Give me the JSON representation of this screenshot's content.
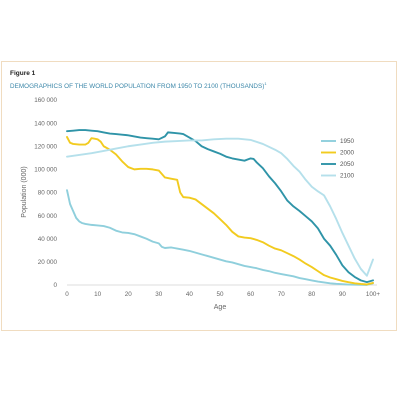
{
  "figure": {
    "label": "Figure 1",
    "title": "DEMOGRAPHICS OF THE WORLD POPULATION FROM 1950 TO 2100 (THOUSANDS)",
    "footnote_marker": "1"
  },
  "chart_data": {
    "type": "line",
    "xlabel": "Age",
    "ylabel": "Population (000)",
    "xlim": [
      0,
      100
    ],
    "ylim": [
      0,
      160000
    ],
    "x_ticks": [
      0,
      10,
      20,
      30,
      40,
      50,
      60,
      70,
      80,
      90,
      100
    ],
    "x_tick_labels": [
      "0",
      "10",
      "20",
      "30",
      "40",
      "50",
      "60",
      "70",
      "80",
      "90",
      "100+"
    ],
    "y_ticks": [
      0,
      20000,
      40000,
      60000,
      80000,
      100000,
      120000,
      140000,
      160000
    ],
    "y_tick_labels": [
      "0",
      "20 000",
      "40 000",
      "60 000",
      "80 000",
      "100 000",
      "120 000",
      "140 000",
      "160 000"
    ],
    "grid": false,
    "legend_position": "right",
    "series": [
      {
        "name": "1950",
        "color": "#8fcfdc",
        "points": [
          [
            0,
            82000
          ],
          [
            1,
            70000
          ],
          [
            2,
            64000
          ],
          [
            3,
            58000
          ],
          [
            4,
            55000
          ],
          [
            5,
            53500
          ],
          [
            6,
            52800
          ],
          [
            8,
            52000
          ],
          [
            10,
            51500
          ],
          [
            12,
            51000
          ],
          [
            14,
            49500
          ],
          [
            16,
            47000
          ],
          [
            18,
            45500
          ],
          [
            20,
            45000
          ],
          [
            22,
            44000
          ],
          [
            24,
            42000
          ],
          [
            26,
            40000
          ],
          [
            28,
            37500
          ],
          [
            30,
            36000
          ],
          [
            31,
            33000
          ],
          [
            32,
            32000
          ],
          [
            34,
            32500
          ],
          [
            35,
            32000
          ],
          [
            36,
            31500
          ],
          [
            38,
            30500
          ],
          [
            40,
            29500
          ],
          [
            42,
            28000
          ],
          [
            44,
            26500
          ],
          [
            46,
            25000
          ],
          [
            48,
            23500
          ],
          [
            50,
            22000
          ],
          [
            52,
            20500
          ],
          [
            54,
            19500
          ],
          [
            56,
            18000
          ],
          [
            58,
            16500
          ],
          [
            60,
            15500
          ],
          [
            62,
            14500
          ],
          [
            64,
            13000
          ],
          [
            66,
            12000
          ],
          [
            68,
            10500
          ],
          [
            70,
            9500
          ],
          [
            72,
            8500
          ],
          [
            74,
            7500
          ],
          [
            76,
            6000
          ],
          [
            78,
            5000
          ],
          [
            80,
            4000
          ],
          [
            82,
            3000
          ],
          [
            84,
            2200
          ],
          [
            86,
            1500
          ],
          [
            88,
            1000
          ],
          [
            90,
            700
          ],
          [
            92,
            400
          ],
          [
            94,
            250
          ],
          [
            96,
            150
          ],
          [
            98,
            100
          ],
          [
            100,
            1500
          ]
        ]
      },
      {
        "name": "2000",
        "color": "#f2cb1f",
        "points": [
          [
            0,
            128000
          ],
          [
            1,
            123000
          ],
          [
            2,
            122000
          ],
          [
            4,
            121500
          ],
          [
            6,
            121500
          ],
          [
            7,
            123000
          ],
          [
            8,
            127000
          ],
          [
            9,
            126500
          ],
          [
            10,
            126000
          ],
          [
            11,
            124000
          ],
          [
            12,
            120000
          ],
          [
            14,
            117000
          ],
          [
            16,
            113000
          ],
          [
            18,
            107000
          ],
          [
            20,
            102000
          ],
          [
            22,
            100000
          ],
          [
            24,
            100500
          ],
          [
            26,
            100500
          ],
          [
            28,
            100000
          ],
          [
            30,
            99000
          ],
          [
            32,
            93000
          ],
          [
            34,
            92000
          ],
          [
            36,
            91000
          ],
          [
            37,
            80000
          ],
          [
            38,
            76000
          ],
          [
            40,
            75500
          ],
          [
            42,
            74000
          ],
          [
            44,
            70000
          ],
          [
            46,
            66000
          ],
          [
            48,
            62000
          ],
          [
            50,
            57000
          ],
          [
            52,
            52000
          ],
          [
            54,
            46000
          ],
          [
            56,
            42000
          ],
          [
            58,
            41000
          ],
          [
            60,
            40500
          ],
          [
            62,
            39000
          ],
          [
            64,
            37000
          ],
          [
            66,
            34000
          ],
          [
            68,
            31500
          ],
          [
            70,
            30000
          ],
          [
            72,
            27500
          ],
          [
            74,
            25000
          ],
          [
            76,
            22000
          ],
          [
            78,
            18500
          ],
          [
            80,
            15500
          ],
          [
            82,
            12000
          ],
          [
            84,
            8500
          ],
          [
            86,
            6500
          ],
          [
            88,
            5000
          ],
          [
            90,
            3500
          ],
          [
            92,
            2400
          ],
          [
            94,
            1500
          ],
          [
            96,
            900
          ],
          [
            98,
            500
          ],
          [
            100,
            1800
          ]
        ]
      },
      {
        "name": "2050",
        "color": "#2f94a8",
        "points": [
          [
            0,
            133000
          ],
          [
            2,
            133500
          ],
          [
            4,
            134000
          ],
          [
            6,
            134000
          ],
          [
            8,
            133500
          ],
          [
            10,
            133000
          ],
          [
            12,
            132000
          ],
          [
            14,
            131000
          ],
          [
            16,
            130500
          ],
          [
            18,
            130000
          ],
          [
            20,
            129500
          ],
          [
            22,
            128500
          ],
          [
            24,
            127500
          ],
          [
            26,
            127000
          ],
          [
            28,
            126500
          ],
          [
            30,
            126000
          ],
          [
            32,
            128500
          ],
          [
            33,
            132000
          ],
          [
            35,
            131500
          ],
          [
            37,
            131000
          ],
          [
            38,
            130500
          ],
          [
            40,
            127500
          ],
          [
            42,
            124500
          ],
          [
            44,
            120000
          ],
          [
            46,
            117500
          ],
          [
            48,
            115500
          ],
          [
            50,
            113500
          ],
          [
            52,
            111000
          ],
          [
            54,
            109500
          ],
          [
            56,
            108500
          ],
          [
            58,
            107500
          ],
          [
            60,
            109500
          ],
          [
            61,
            109000
          ],
          [
            62,
            106000
          ],
          [
            64,
            101000
          ],
          [
            66,
            94000
          ],
          [
            68,
            88000
          ],
          [
            70,
            81000
          ],
          [
            72,
            73000
          ],
          [
            74,
            68000
          ],
          [
            76,
            64000
          ],
          [
            78,
            59500
          ],
          [
            80,
            55000
          ],
          [
            82,
            49000
          ],
          [
            84,
            40000
          ],
          [
            86,
            34000
          ],
          [
            88,
            26000
          ],
          [
            90,
            17000
          ],
          [
            92,
            11000
          ],
          [
            94,
            7000
          ],
          [
            96,
            4000
          ],
          [
            98,
            2500
          ],
          [
            100,
            4000
          ]
        ]
      },
      {
        "name": "2100",
        "color": "#b5e0eb",
        "points": [
          [
            0,
            111000
          ],
          [
            4,
            112500
          ],
          [
            8,
            114000
          ],
          [
            12,
            116000
          ],
          [
            16,
            118000
          ],
          [
            20,
            120000
          ],
          [
            24,
            121500
          ],
          [
            28,
            123000
          ],
          [
            32,
            124000
          ],
          [
            36,
            124500
          ],
          [
            40,
            125000
          ],
          [
            44,
            125000
          ],
          [
            48,
            126000
          ],
          [
            52,
            126500
          ],
          [
            56,
            126500
          ],
          [
            60,
            125500
          ],
          [
            64,
            122000
          ],
          [
            68,
            117000
          ],
          [
            70,
            114000
          ],
          [
            72,
            109000
          ],
          [
            74,
            103000
          ],
          [
            76,
            98000
          ],
          [
            78,
            91000
          ],
          [
            80,
            85000
          ],
          [
            82,
            81000
          ],
          [
            84,
            77500
          ],
          [
            86,
            68000
          ],
          [
            88,
            57000
          ],
          [
            90,
            45000
          ],
          [
            92,
            34000
          ],
          [
            94,
            23000
          ],
          [
            96,
            14000
          ],
          [
            98,
            8000
          ],
          [
            100,
            22000
          ]
        ]
      }
    ]
  }
}
